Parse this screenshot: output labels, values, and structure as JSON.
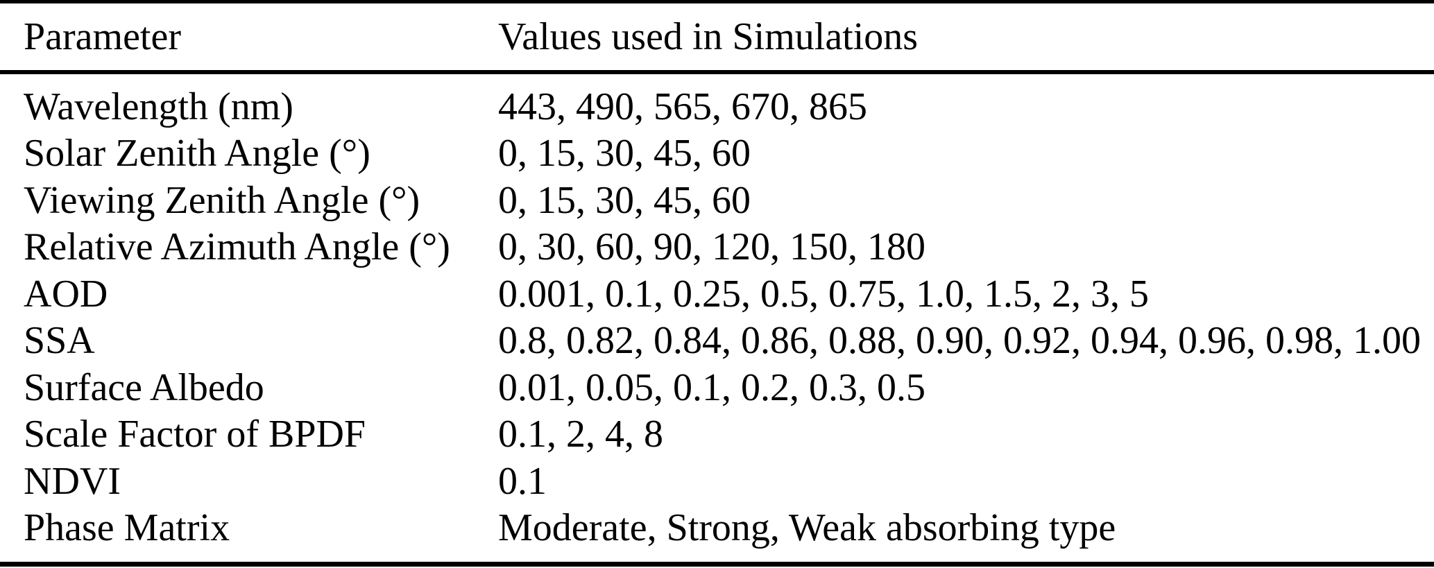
{
  "table": {
    "columns": {
      "parameter": "Parameter",
      "values": "Values used in Simulations"
    },
    "rows": [
      {
        "parameter": "Wavelength (nm)",
        "values": "443, 490, 565, 670, 865"
      },
      {
        "parameter": "Solar Zenith Angle (°)",
        "values": "0, 15, 30, 45, 60"
      },
      {
        "parameter": "Viewing Zenith Angle (°)",
        "values": "0, 15, 30, 45, 60"
      },
      {
        "parameter": "Relative Azimuth Angle (°)",
        "values": "0, 30, 60, 90, 120, 150, 180"
      },
      {
        "parameter": "AOD",
        "values": "0.001, 0.1, 0.25, 0.5, 0.75, 1.0, 1.5, 2, 3, 5"
      },
      {
        "parameter": "SSA",
        "values": "0.8, 0.82, 0.84, 0.86, 0.88, 0.90, 0.92, 0.94, 0.96, 0.98, 1.00"
      },
      {
        "parameter": "Surface Albedo",
        "values": "0.01, 0.05, 0.1, 0.2, 0.3, 0.5"
      },
      {
        "parameter": "Scale Factor of BPDF",
        "values": "0.1, 2, 4, 8"
      },
      {
        "parameter": "NDVI",
        "values": "0.1"
      },
      {
        "parameter": "Phase Matrix",
        "values": "Moderate, Strong, Weak absorbing type"
      }
    ],
    "colors": {
      "text": "#000000",
      "background": "#ffffff",
      "rule": "#000000"
    }
  }
}
